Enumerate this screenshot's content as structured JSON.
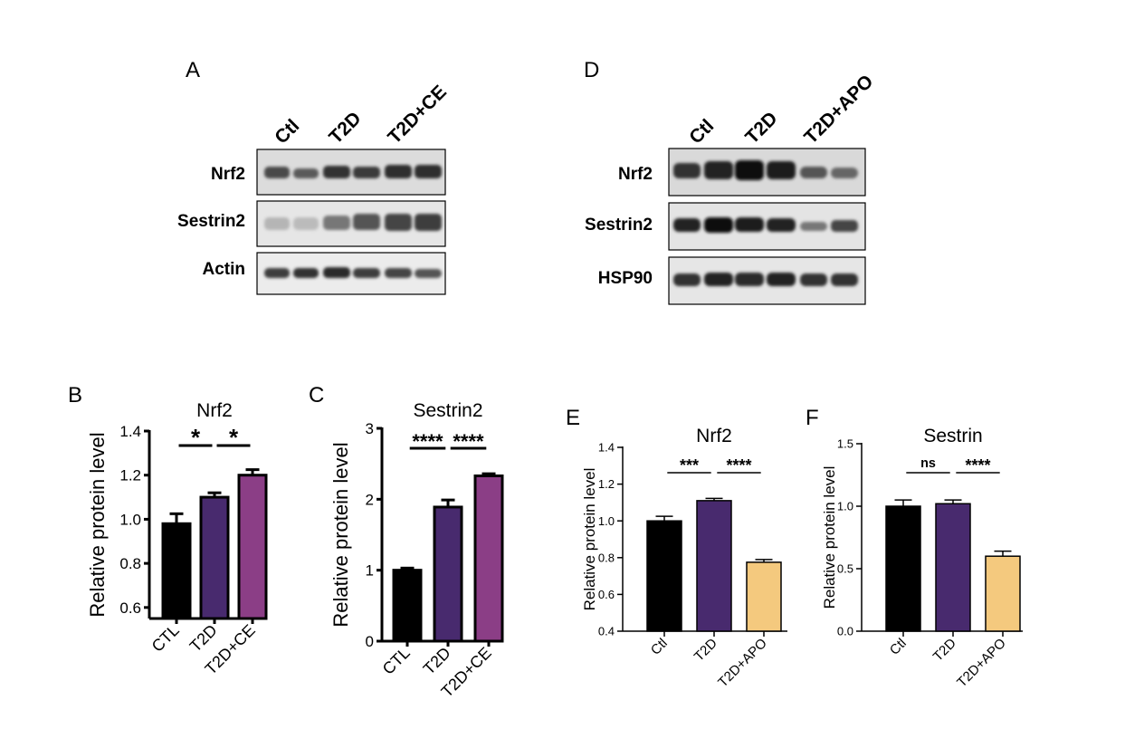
{
  "blots": [
    {
      "panel": "A",
      "lanes": [
        "Ctl",
        "T2D",
        "T2D+CE"
      ],
      "rows": [
        "Nrf2",
        "Sestrin2",
        "Actin"
      ]
    },
    {
      "panel": "D",
      "lanes": [
        "Ctl",
        "T2D",
        "T2D+APO"
      ],
      "rows": [
        "Nrf2",
        "Sestrin2",
        "HSP90"
      ]
    }
  ],
  "chart_data": [
    {
      "panel": "B",
      "type": "bar",
      "title": "Nrf2",
      "ylabel": "Relative protein level",
      "categories": [
        "CTL",
        "T2D",
        "T2D+CE"
      ],
      "values": [
        0.98,
        1.1,
        1.2
      ],
      "errors": [
        0.045,
        0.02,
        0.025
      ],
      "colors": [
        "#000000",
        "#482a6e",
        "#8b3e86"
      ],
      "ylim": [
        0.55,
        1.4
      ],
      "yticks": [
        "0.6",
        "0.8",
        "1.0",
        "1.2",
        "1.4"
      ],
      "significance": [
        {
          "from": 0,
          "to": 1,
          "label": "*"
        },
        {
          "from": 1,
          "to": 2,
          "label": "*"
        }
      ]
    },
    {
      "panel": "C",
      "type": "bar",
      "title": "Sestrin2",
      "ylabel": "Relative protein level",
      "categories": [
        "CTL",
        "T2D",
        "T2D+CE"
      ],
      "values": [
        1.0,
        1.89,
        2.33
      ],
      "errors": [
        0.03,
        0.1,
        0.03
      ],
      "colors": [
        "#000000",
        "#482a6e",
        "#8b3e86"
      ],
      "ylim": [
        0,
        3
      ],
      "yticks": [
        "0",
        "1",
        "2",
        "3"
      ],
      "significance": [
        {
          "from": 0,
          "to": 1,
          "label": "****"
        },
        {
          "from": 1,
          "to": 2,
          "label": "****"
        }
      ]
    },
    {
      "panel": "E",
      "type": "bar",
      "title": "Nrf2",
      "ylabel": "Relative protein level",
      "categories": [
        "Ctl",
        "T2D",
        "T2D+APO"
      ],
      "values": [
        1.0,
        1.11,
        0.775
      ],
      "errors": [
        0.025,
        0.012,
        0.015
      ],
      "colors": [
        "#000000",
        "#482a6e",
        "#f4c97e"
      ],
      "ylim": [
        0.4,
        1.4
      ],
      "yticks": [
        "0.4",
        "0.6",
        "0.8",
        "1.0",
        "1.2",
        "1.4"
      ],
      "significance": [
        {
          "from": 0,
          "to": 1,
          "label": "***"
        },
        {
          "from": 1,
          "to": 2,
          "label": "****"
        }
      ]
    },
    {
      "panel": "F",
      "type": "bar",
      "title": "Sestrin",
      "ylabel": "Relative protein level",
      "categories": [
        "Ctl",
        "T2D",
        "T2D+APO"
      ],
      "values": [
        1.0,
        1.02,
        0.6
      ],
      "errors": [
        0.05,
        0.03,
        0.04
      ],
      "colors": [
        "#000000",
        "#482a6e",
        "#f4c97e"
      ],
      "ylim": [
        0,
        1.5
      ],
      "yticks": [
        "0.0",
        "0.5",
        "1.0",
        "1.5"
      ],
      "significance": [
        {
          "from": 0,
          "to": 1,
          "label": "ns"
        },
        {
          "from": 1,
          "to": 2,
          "label": "****"
        }
      ]
    }
  ]
}
